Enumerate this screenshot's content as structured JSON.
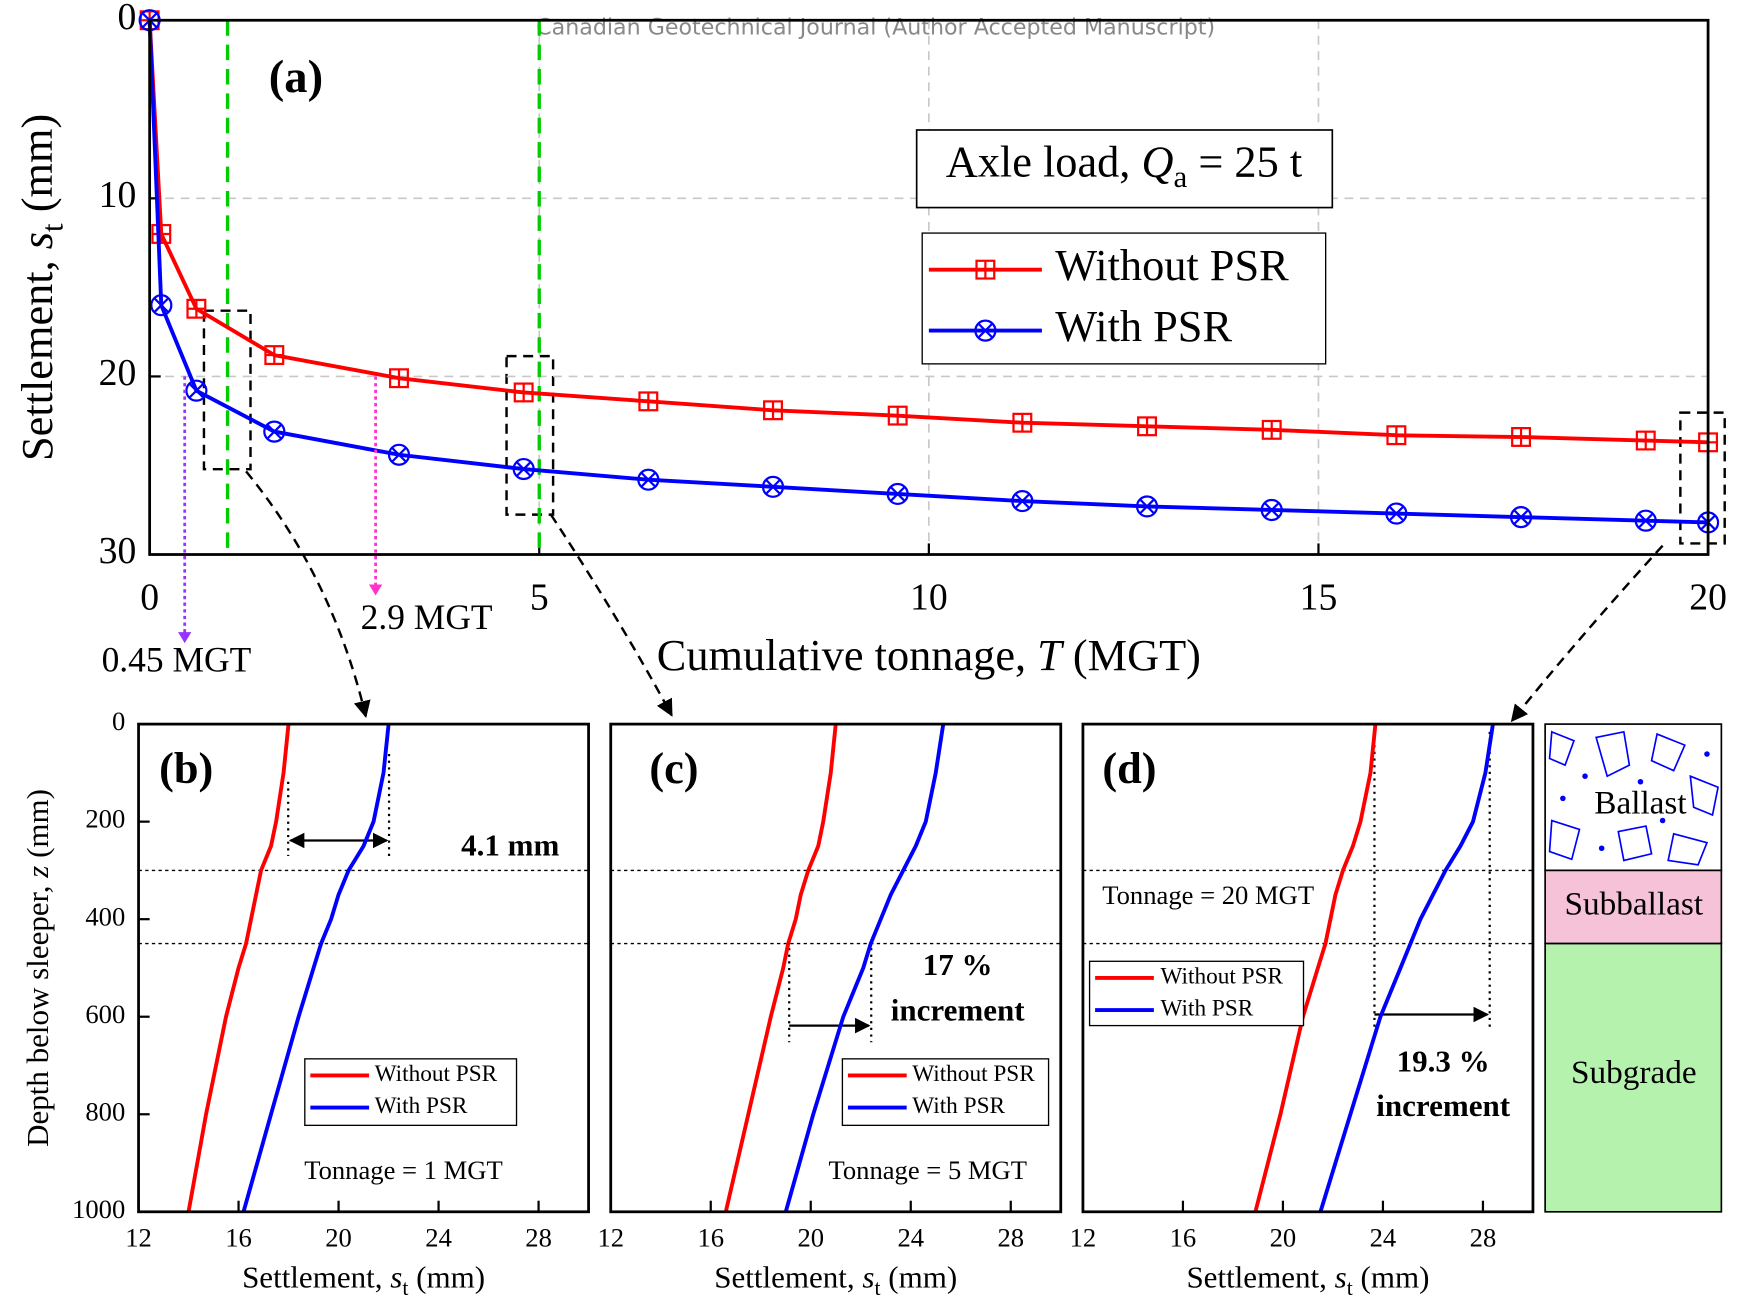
{
  "watermark": "Canadian Geotechnical Journal (Author Accepted Manuscript)",
  "layers": [
    "Ballast",
    "Subballast",
    "Subgrade"
  ],
  "chart_data": [
    {
      "type": "line",
      "panel_label": "(a)",
      "x": [
        0,
        0.15,
        0.6,
        1.6,
        3.2,
        4.8,
        6.4,
        8,
        9.6,
        11.2,
        12.8,
        14.4,
        16,
        17.6,
        19.2,
        20
      ],
      "series": [
        {
          "name": "Without PSR",
          "color": "#ff0000",
          "marker": "square-plus",
          "values": [
            0,
            12,
            16.2,
            18.8,
            20.1,
            20.9,
            21.4,
            21.9,
            22.2,
            22.6,
            22.8,
            23.0,
            23.3,
            23.4,
            23.6,
            23.7
          ]
        },
        {
          "name": "With PSR",
          "color": "#0000ff",
          "marker": "circle-x",
          "values": [
            0,
            16,
            20.8,
            23.1,
            24.4,
            25.2,
            25.8,
            26.2,
            26.6,
            27.0,
            27.3,
            27.5,
            27.7,
            27.9,
            28.1,
            28.2
          ]
        }
      ],
      "xlim": [
        0,
        20
      ],
      "ylim": [
        30,
        0
      ],
      "xticks": [
        0,
        5,
        10,
        15,
        20
      ],
      "yticks": [
        0,
        10,
        20,
        30
      ],
      "grid": true,
      "xlabel": {
        "text": "Cumulative tonnage, ",
        "var": "T",
        "unit": " (MGT)"
      },
      "ylabel": {
        "text": "Settlement, ",
        "var": "s",
        "sub": "t",
        "unit": " (mm)"
      },
      "load_label": {
        "text": "Axle load, ",
        "var": "Q",
        "sub": "a",
        "unit": " = 25 t"
      },
      "vlines": {
        "color": "#00cc00",
        "x": [
          1,
          5
        ]
      },
      "arrows": [
        {
          "x": 0.45,
          "y": 20,
          "label": "0.45 MGT",
          "color": "#9933ff"
        },
        {
          "x": 2.9,
          "y": 20,
          "label": "2.9 MGT",
          "color": "#ff33cc"
        }
      ],
      "legend": "upper right"
    },
    {
      "type": "line",
      "panel_label": "(b)",
      "depth": [
        0,
        100,
        200,
        250,
        300,
        350,
        400,
        450,
        500,
        600,
        800,
        1000
      ],
      "series": [
        {
          "name": "Without PSR",
          "color": "#ff0000",
          "values": [
            18.0,
            17.8,
            17.5,
            17.3,
            16.9,
            16.7,
            16.5,
            16.3,
            16.0,
            15.5,
            14.7,
            14.0
          ]
        },
        {
          "name": "With PSR",
          "color": "#0000ff",
          "values": [
            22.0,
            21.8,
            21.4,
            21.0,
            20.4,
            20.0,
            19.7,
            19.3,
            19.0,
            18.4,
            17.3,
            16.2
          ]
        }
      ],
      "xlim": [
        12,
        30
      ],
      "ylim": [
        1000,
        0
      ],
      "xticks": [
        12,
        16,
        20,
        24,
        28
      ],
      "yticks": [
        0,
        200,
        400,
        600,
        800,
        1000
      ],
      "hlines": [
        300,
        450
      ],
      "xlabel": {
        "text": "Settlement, ",
        "var": "s",
        "sub": "t",
        "unit": " (mm)"
      },
      "ylabel": {
        "text": "Depth below sleeper, ",
        "var": "z",
        "unit": " (mm)"
      },
      "note": "Tonnage = 1 MGT",
      "increment_label": [
        "4.1 mm"
      ],
      "legend": "lower right"
    },
    {
      "type": "line",
      "panel_label": "(c)",
      "depth": [
        0,
        100,
        200,
        250,
        300,
        350,
        400,
        450,
        500,
        600,
        800,
        1000
      ],
      "series": [
        {
          "name": "Without PSR",
          "color": "#ff0000",
          "values": [
            21.0,
            20.8,
            20.5,
            20.3,
            19.9,
            19.6,
            19.4,
            19.1,
            18.9,
            18.4,
            17.5,
            16.6
          ]
        },
        {
          "name": "With PSR",
          "color": "#0000ff",
          "values": [
            25.3,
            25.0,
            24.6,
            24.2,
            23.7,
            23.2,
            22.8,
            22.4,
            22.1,
            21.3,
            20.1,
            19.0
          ]
        }
      ],
      "xlim": [
        12,
        30
      ],
      "ylim": [
        1000,
        0
      ],
      "xticks": [
        12,
        16,
        20,
        24,
        28
      ],
      "hlines": [
        300,
        450
      ],
      "xlabel": {
        "text": "Settlement, ",
        "var": "s",
        "sub": "t",
        "unit": " (mm)"
      },
      "note": "Tonnage = 5 MGT",
      "increment_label": [
        "17 %",
        "increment"
      ],
      "legend": "lower right"
    },
    {
      "type": "line",
      "panel_label": "(d)",
      "depth": [
        0,
        100,
        200,
        250,
        300,
        350,
        400,
        450,
        500,
        600,
        800,
        1000
      ],
      "series": [
        {
          "name": "Without PSR",
          "color": "#ff0000",
          "values": [
            23.7,
            23.5,
            23.1,
            22.8,
            22.4,
            22.1,
            21.9,
            21.7,
            21.4,
            20.8,
            19.9,
            18.9
          ]
        },
        {
          "name": "With PSR",
          "color": "#0000ff",
          "values": [
            28.4,
            28.1,
            27.6,
            27.1,
            26.5,
            26.0,
            25.5,
            25.1,
            24.7,
            23.9,
            22.7,
            21.5
          ]
        }
      ],
      "xlim": [
        12,
        30
      ],
      "ylim": [
        1000,
        0
      ],
      "xticks": [
        12,
        16,
        20,
        24,
        28
      ],
      "hlines": [
        300,
        450
      ],
      "xlabel": {
        "text": "Settlement, ",
        "var": "s",
        "sub": "t",
        "unit": " (mm)"
      },
      "note": "Tonnage = 20 MGT",
      "increment_label": [
        "19.3 %",
        "increment"
      ],
      "legend": "upper left"
    }
  ]
}
